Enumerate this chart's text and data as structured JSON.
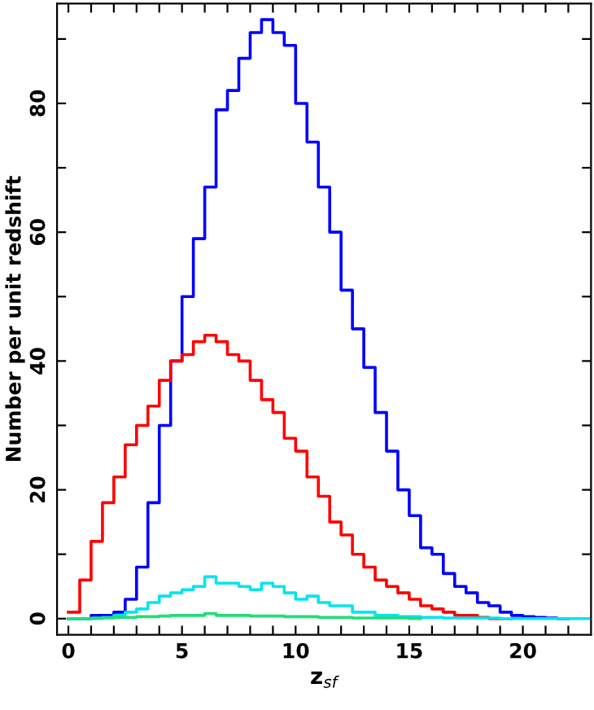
{
  "chart_data": {
    "type": "step",
    "xlabel": "z$_{sf}$",
    "ylabel": "Number per unit redshift",
    "x": [
      0,
      0.5,
      1,
      1.5,
      2,
      2.5,
      3,
      3.5,
      4,
      4.5,
      5,
      5.5,
      6,
      6.5,
      7,
      7.5,
      8,
      8.5,
      9,
      9.5,
      10,
      10.5,
      11,
      11.5,
      12,
      12.5,
      13,
      13.5,
      14,
      14.5,
      15,
      15.5,
      16,
      16.5,
      17,
      17.5,
      18,
      18.5,
      19,
      19.5,
      20,
      20.5,
      21,
      21.5,
      22,
      22.5,
      23
    ],
    "series": [
      {
        "color": "#0000ff",
        "values": [
          0,
          0,
          0.5,
          0.5,
          1,
          3,
          8,
          18,
          30,
          40,
          50,
          59,
          67,
          79,
          82,
          87,
          91,
          93,
          91,
          89,
          80,
          74,
          67,
          60,
          51,
          45,
          39,
          32,
          26,
          20,
          16,
          11,
          10,
          7,
          5,
          4,
          2.5,
          2,
          1,
          0.5,
          0.3,
          0.2,
          0.1,
          0,
          0,
          null,
          null
        ]
      },
      {
        "color": "#ff0000",
        "values": [
          1,
          6,
          12,
          18,
          22,
          27,
          30,
          33,
          37,
          40,
          41,
          43,
          44,
          43,
          41,
          40,
          37,
          34,
          32,
          28,
          26,
          22,
          19,
          15,
          13,
          10,
          8,
          6,
          5,
          4,
          3,
          2,
          1.5,
          1,
          0.5,
          0.5,
          0.2,
          0,
          0,
          0,
          null,
          null,
          null,
          null,
          null,
          null,
          null
        ]
      },
      {
        "color": "#00e5ee",
        "values": [
          0,
          0,
          0,
          0.2,
          0.5,
          1,
          1.5,
          2.5,
          3.5,
          4,
          4.5,
          5,
          6.5,
          5.5,
          5.5,
          5,
          4.5,
          5.5,
          5,
          4,
          3,
          3.5,
          2.5,
          2,
          2,
          1,
          1,
          0.5,
          0.5,
          0.3,
          0.3,
          0.2,
          0.2,
          0.1,
          0.1,
          0.1,
          0.1,
          0.1,
          0,
          0,
          0,
          0,
          0,
          0,
          0,
          0,
          0
        ]
      },
      {
        "color": "#22dd77",
        "values": [
          0,
          0,
          0.1,
          0.1,
          0.2,
          0.2,
          0.3,
          0.3,
          0.4,
          0.5,
          0.5,
          0.5,
          0.8,
          0.5,
          0.5,
          0.5,
          0.4,
          0.4,
          0.4,
          0.3,
          0.3,
          0.3,
          0.2,
          0.2,
          0.2,
          0.1,
          0.1,
          0.1,
          0.1,
          0.1,
          0,
          0,
          null,
          null,
          null,
          null,
          null,
          null,
          null,
          null,
          null,
          null,
          null,
          null,
          null,
          null,
          null
        ]
      }
    ],
    "xlim": [
      -0.5,
      23
    ],
    "ylim": [
      -2.5,
      95.5
    ],
    "xticks": [
      0,
      {
        "value": 1,
        "label": null
      },
      {
        "value": 2,
        "label": null
      },
      {
        "value": 3,
        "label": null
      },
      {
        "value": 4,
        "label": null
      },
      5,
      {
        "value": 6,
        "label": null
      },
      {
        "value": 7,
        "label": null
      },
      {
        "value": 8,
        "label": null
      },
      {
        "value": 9,
        "label": null
      },
      10,
      {
        "value": 11,
        "label": null
      },
      {
        "value": 12,
        "label": null
      },
      {
        "value": 13,
        "label": null
      },
      {
        "value": 14,
        "label": null
      },
      15,
      {
        "value": 16,
        "label": null
      },
      {
        "value": 17,
        "label": null
      },
      {
        "value": 18,
        "label": null
      },
      {
        "value": 19,
        "label": null
      },
      20,
      {
        "value": 21,
        "label": null
      },
      {
        "value": 22,
        "label": null
      }
    ],
    "yticks": [
      0,
      {
        "value": 10,
        "label": null
      },
      20,
      {
        "value": 30,
        "label": null
      },
      40,
      {
        "value": 50,
        "label": null
      },
      60,
      {
        "value": 70,
        "label": null
      },
      80,
      {
        "value": 90,
        "label": null
      }
    ],
    "grid": false,
    "legend": false
  }
}
